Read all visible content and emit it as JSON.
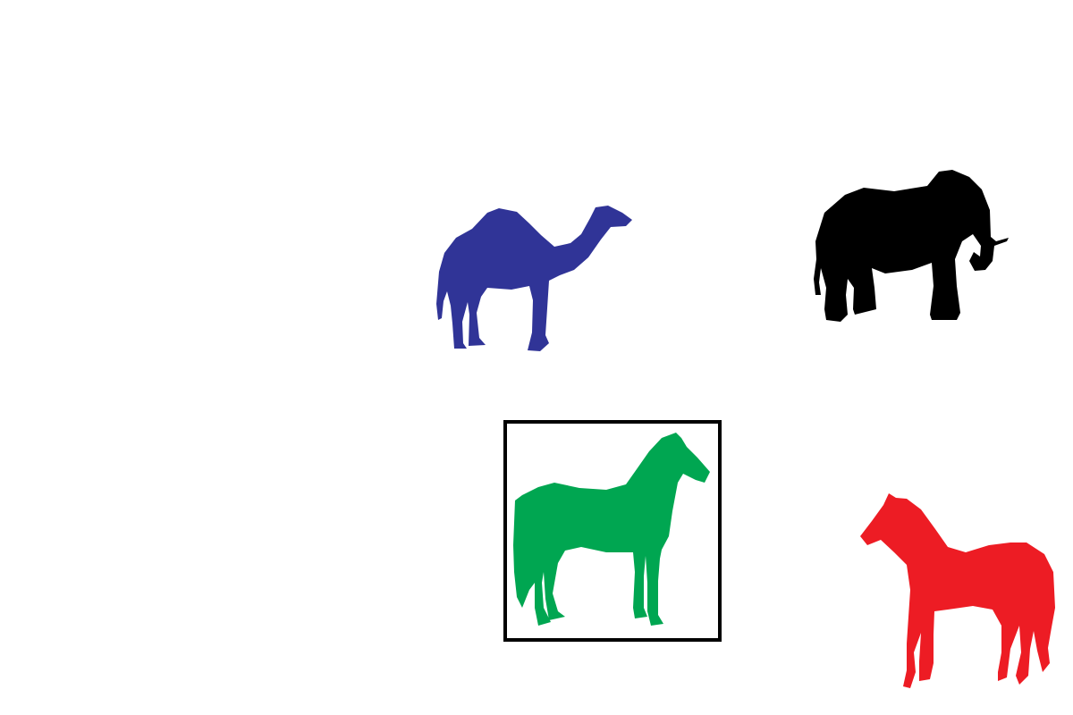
{
  "scene": {
    "background": "#ffffff",
    "selection_color": "#000000",
    "animals": [
      {
        "kind": "camel-silhouette-icon",
        "color": "#303497",
        "facing": "right",
        "selected": false
      },
      {
        "kind": "elephant-silhouette-icon",
        "color": "#000000",
        "facing": "right",
        "selected": false
      },
      {
        "kind": "horse-silhouette-icon",
        "color": "#00a651",
        "facing": "right",
        "selected": true
      },
      {
        "kind": "horse-silhouette-icon",
        "color": "#ed1c24",
        "facing": "left",
        "selected": false
      }
    ]
  }
}
